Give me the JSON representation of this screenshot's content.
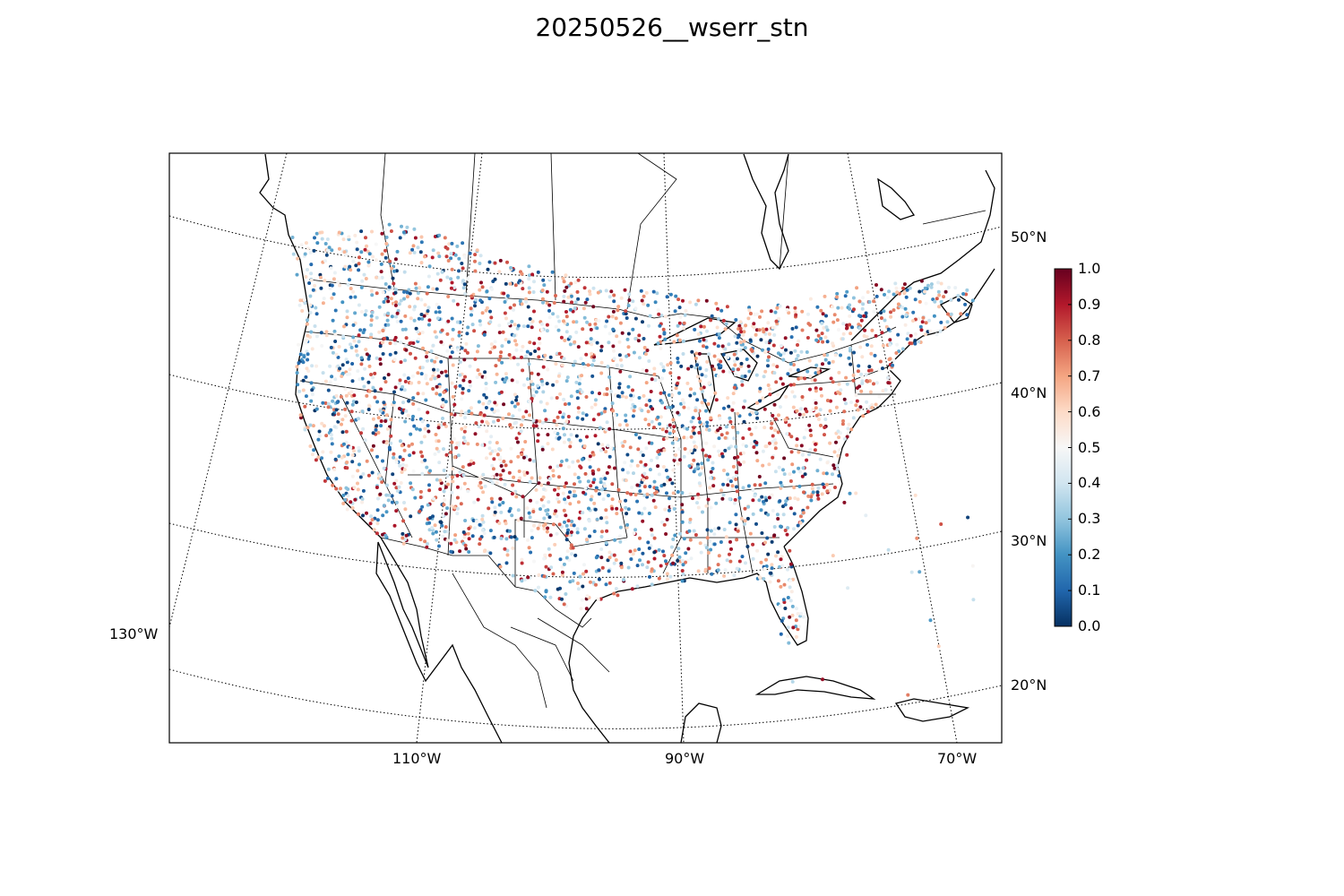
{
  "title": "20250526__wserr_stn",
  "map": {
    "projection": "lambert-conformal-conic",
    "parallel_labels": [
      "50°N",
      "40°N",
      "30°N",
      "20°N"
    ],
    "meridian_labels": [
      "130°W",
      "110°W",
      "90°W",
      "70°W"
    ],
    "gridlines": "dotted",
    "coastlines": true,
    "state_borders": true,
    "country_borders": true
  },
  "colorbar": {
    "colormap": "RdBu_r",
    "range": [
      0.0,
      1.0
    ],
    "ticks": [
      "1.0",
      "0.9",
      "0.8",
      "0.7",
      "0.6",
      "0.5",
      "0.4",
      "0.3",
      "0.2",
      "0.1",
      "0.0"
    ],
    "colors": [
      "#053061",
      "#2166ac",
      "#4393c3",
      "#92c5de",
      "#d1e5f0",
      "#f7f7f7",
      "#fddbc7",
      "#f4a582",
      "#d6604d",
      "#b2182b",
      "#67001f"
    ]
  },
  "chart_data": {
    "type": "scatter",
    "title": "20250526__wserr_stn",
    "description_values": "station points colored by value 0.0–1.0 over the CONUS, southern Canada and northern Mexico",
    "value_range": [
      0.0,
      1.0
    ]
  }
}
